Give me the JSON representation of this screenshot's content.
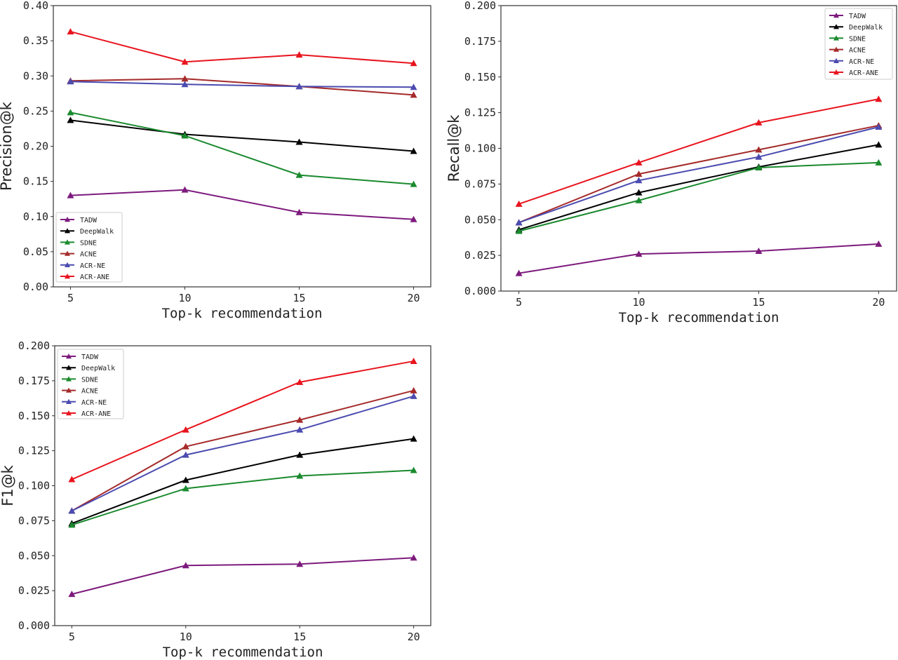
{
  "chart_data": [
    {
      "type": "line",
      "xlabel": "Top-k recommendation",
      "ylabel": "Precision@k",
      "x": [
        5,
        10,
        15,
        20
      ],
      "xlim": [
        4.25,
        20.75
      ],
      "ylim": [
        0,
        0.4
      ],
      "yticks": [
        "0.00",
        "0.05",
        "0.10",
        "0.15",
        "0.20",
        "0.25",
        "0.30",
        "0.35",
        "0.40"
      ],
      "xticks": [
        "5",
        "10",
        "15",
        "20"
      ],
      "legend": "lower-left",
      "grid": false,
      "series": [
        {
          "name": "TADW",
          "color": "#7d1a7d",
          "values": [
            0.13,
            0.138,
            0.106,
            0.096
          ]
        },
        {
          "name": "DeepWalk",
          "color": "#000000",
          "values": [
            0.237,
            0.217,
            0.206,
            0.193
          ]
        },
        {
          "name": "SDNE",
          "color": "#1a8a2e",
          "values": [
            0.248,
            0.215,
            0.159,
            0.146
          ]
        },
        {
          "name": "ACNE",
          "color": "#a52a2a",
          "values": [
            0.293,
            0.296,
            0.285,
            0.273
          ]
        },
        {
          "name": "ACR-NE",
          "color": "#4b4bb0",
          "values": [
            0.292,
            0.288,
            0.285,
            0.284
          ]
        },
        {
          "name": "ACR-ANE",
          "color": "#e8141e",
          "values": [
            0.363,
            0.32,
            0.33,
            0.318
          ]
        }
      ]
    },
    {
      "type": "line",
      "xlabel": "Top-k recommendation",
      "ylabel": "Recall@k",
      "x": [
        5,
        10,
        15,
        20
      ],
      "xlim": [
        4.25,
        20.75
      ],
      "ylim": [
        0,
        0.2
      ],
      "yticks": [
        "0.000",
        "0.025",
        "0.050",
        "0.075",
        "0.100",
        "0.125",
        "0.150",
        "0.175",
        "0.200"
      ],
      "xticks": [
        "5",
        "10",
        "15",
        "20"
      ],
      "legend": "upper-right",
      "grid": false,
      "series": [
        {
          "name": "TADW",
          "color": "#7d1a7d",
          "values": [
            0.0125,
            0.026,
            0.028,
            0.033
          ]
        },
        {
          "name": "DeepWalk",
          "color": "#000000",
          "values": [
            0.043,
            0.069,
            0.087,
            0.1025
          ]
        },
        {
          "name": "SDNE",
          "color": "#1a8a2e",
          "values": [
            0.042,
            0.0635,
            0.0865,
            0.09
          ]
        },
        {
          "name": "ACNE",
          "color": "#a52a2a",
          "values": [
            0.048,
            0.082,
            0.099,
            0.116
          ]
        },
        {
          "name": "ACR-NE",
          "color": "#4b4bb0",
          "values": [
            0.048,
            0.0775,
            0.094,
            0.115
          ]
        },
        {
          "name": "ACR-ANE",
          "color": "#e8141e",
          "values": [
            0.061,
            0.09,
            0.118,
            0.1345
          ]
        }
      ]
    },
    {
      "type": "line",
      "xlabel": "Top-k recommendation",
      "ylabel": "F1@k",
      "x": [
        5,
        10,
        15,
        20
      ],
      "xlim": [
        4.25,
        20.75
      ],
      "ylim": [
        0,
        0.2
      ],
      "yticks": [
        "0.000",
        "0.025",
        "0.050",
        "0.075",
        "0.100",
        "0.125",
        "0.150",
        "0.175",
        "0.200"
      ],
      "xticks": [
        "5",
        "10",
        "15",
        "20"
      ],
      "legend": "upper-left",
      "grid": false,
      "series": [
        {
          "name": "TADW",
          "color": "#7d1a7d",
          "values": [
            0.0225,
            0.043,
            0.044,
            0.0485
          ]
        },
        {
          "name": "DeepWalk",
          "color": "#000000",
          "values": [
            0.073,
            0.104,
            0.122,
            0.1335
          ]
        },
        {
          "name": "SDNE",
          "color": "#1a8a2e",
          "values": [
            0.072,
            0.098,
            0.107,
            0.111
          ]
        },
        {
          "name": "ACNE",
          "color": "#a52a2a",
          "values": [
            0.082,
            0.128,
            0.147,
            0.168
          ]
        },
        {
          "name": "ACR-NE",
          "color": "#4b4bb0",
          "values": [
            0.082,
            0.122,
            0.14,
            0.164
          ]
        },
        {
          "name": "ACR-ANE",
          "color": "#e8141e",
          "values": [
            0.1045,
            0.14,
            0.174,
            0.189
          ]
        }
      ]
    }
  ]
}
